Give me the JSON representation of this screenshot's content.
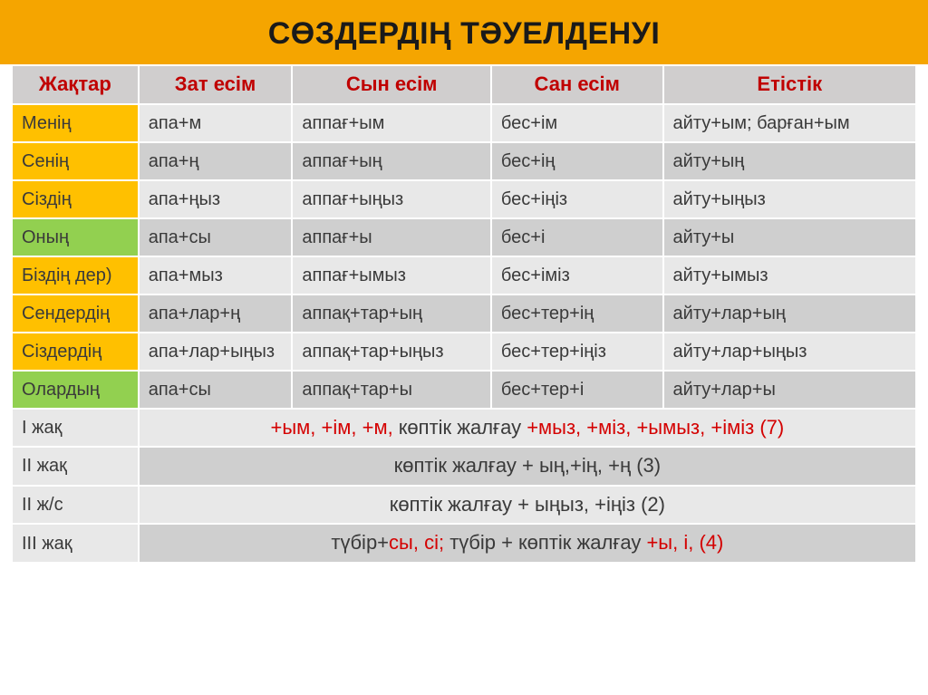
{
  "title": "СӨЗДЕРДІҢ ТӘУЕЛДЕНУІ",
  "style": {
    "title_bg": "#f5a500",
    "title_color": "#1a1a1a",
    "title_fontsize": 34,
    "header_bg": "#d0cece",
    "header_text_color": "#c00000",
    "header_fontsize": 22,
    "row_odd_bg": "#e8e8e8",
    "row_even_bg": "#cfcfcf",
    "cell_text_color": "#3a3a3a",
    "col0_orange": "#ffc000",
    "col0_green": "#92d050",
    "summary_col0_bg": "#e8e8e8",
    "border_color": "#ffffff",
    "col_widths_pct": [
      14,
      17,
      22,
      19,
      28
    ]
  },
  "columns": [
    "Жақтар",
    "Зат есім",
    "Сын есім",
    "Сан есім",
    "Етістік"
  ],
  "rows": [
    {
      "col0_color": "orange",
      "cells": [
        "Менің",
        "апа+м",
        "аппағ+ым",
        "бес+ім",
        "айту+ым; барған+ым"
      ]
    },
    {
      "col0_color": "orange",
      "cells": [
        "Сенің",
        "апа+ң",
        "аппағ+ың",
        "бес+ің",
        "айту+ың"
      ]
    },
    {
      "col0_color": "orange",
      "cells": [
        "Сіздің",
        "апа+ңыз",
        "аппағ+ыңыз",
        "бес+іңіз",
        "айту+ыңыз"
      ]
    },
    {
      "col0_color": "green",
      "cells": [
        "Оның",
        "апа+сы",
        "аппағ+ы",
        "бес+і",
        "айту+ы"
      ]
    },
    {
      "col0_color": "orange",
      "cells": [
        "Біздің дер)",
        "апа+мыз",
        "аппағ+ымыз",
        "бес+іміз",
        "айту+ымыз"
      ]
    },
    {
      "col0_color": "orange",
      "cells": [
        "Сендердің",
        "апа+лар+ң",
        "аппақ+тар+ың",
        "бес+тер+ің",
        "айту+лар+ың"
      ]
    },
    {
      "col0_color": "orange",
      "cells": [
        "Сіздердің",
        "апа+лар+ыңыз",
        "аппақ+тар+ыңыз",
        "бес+тер+іңіз",
        "айту+лар+ыңыз"
      ]
    },
    {
      "col0_color": "green",
      "cells": [
        "Олардың",
        "апа+сы",
        "аппақ+тар+ы",
        "бес+тер+і",
        "айту+лар+ы"
      ]
    }
  ],
  "summary": [
    {
      "label": "І жақ",
      "parts": [
        {
          "text": "+ым, +ім, +м, ",
          "red": true
        },
        {
          "text": "көптік жалғау ",
          "red": false
        },
        {
          "text": "+мыз, +міз, +ымыз, +іміз   (7)",
          "red": true
        }
      ]
    },
    {
      "label": "ІІ жақ",
      "parts": [
        {
          "text": "көптік жалғау + ың,+ің, +ң    (3)",
          "red": false
        }
      ]
    },
    {
      "label": "ІІ ж/с",
      "parts": [
        {
          "text": "көптік жалғау + ыңыз, +іңіз (2)",
          "red": false
        }
      ]
    },
    {
      "label": "ІІІ жақ",
      "parts": [
        {
          "text": "түбір+",
          "red": false
        },
        {
          "text": "сы, сі;        ",
          "red": true
        },
        {
          "text": "түбір + көптік жалғау ",
          "red": false
        },
        {
          "text": "+ы, і,  (4)",
          "red": true
        }
      ]
    }
  ]
}
